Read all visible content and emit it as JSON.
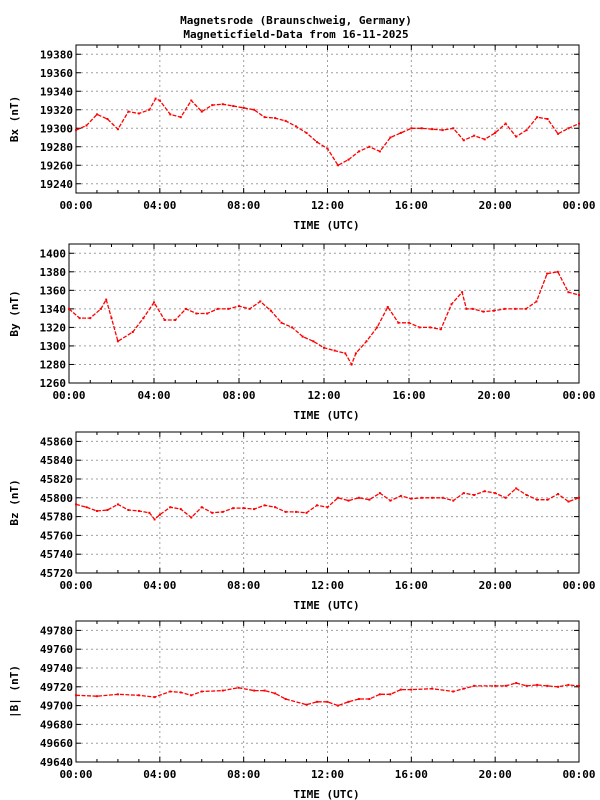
{
  "title_line1": "Magnetsrode (Braunschweig, Germany)",
  "title_line2": "Magneticfield-Data from 16-11-2025",
  "colors": {
    "series": "#ff0000",
    "grid": "#a0a0a0",
    "axis": "#000000"
  },
  "chart_data": [
    {
      "type": "scatter",
      "ylabel": "Bx (nT)",
      "xlabel": "TIME (UTC)",
      "xticks": [
        "00:00",
        "04:00",
        "08:00",
        "12:00",
        "16:00",
        "20:00",
        "00:00"
      ],
      "xlim_hours": [
        0,
        24
      ],
      "yticks": [
        19240,
        19260,
        19280,
        19300,
        19320,
        19340,
        19360,
        19380
      ],
      "ylim": [
        19230,
        19390
      ],
      "grid": true,
      "x": [
        0,
        0.5,
        1,
        1.5,
        2,
        2.5,
        3,
        3.5,
        3.8,
        4,
        4.5,
        5,
        5.5,
        6,
        6.5,
        7,
        7.5,
        8,
        8.5,
        9,
        9.5,
        10,
        10.5,
        11,
        11.5,
        12,
        12.5,
        13,
        13.5,
        14,
        14.5,
        15,
        15.5,
        16,
        16.5,
        17,
        17.5,
        18,
        18.5,
        19,
        19.5,
        20,
        20.5,
        21,
        21.5,
        22,
        22.5,
        23,
        23.5,
        24
      ],
      "y": [
        19298,
        19303,
        19315,
        19310,
        19299,
        19318,
        19316,
        19320,
        19332,
        19330,
        19315,
        19312,
        19330,
        19318,
        19325,
        19326,
        19324,
        19322,
        19320,
        19312,
        19311,
        19308,
        19302,
        19295,
        19285,
        19278,
        19260,
        19266,
        19275,
        19280,
        19275,
        19290,
        19295,
        19300,
        19300,
        19299,
        19298,
        19300,
        19287,
        19292,
        19288,
        19295,
        19305,
        19291,
        19298,
        19312,
        19310,
        19294,
        19300,
        19305
      ]
    },
    {
      "type": "scatter",
      "ylabel": "By (nT)",
      "xlabel": "TIME (UTC)",
      "xticks": [
        "00:00",
        "04:00",
        "08:00",
        "12:00",
        "16:00",
        "20:00",
        "00:00"
      ],
      "xlim_hours": [
        0,
        24
      ],
      "yticks": [
        1260,
        1280,
        1300,
        1320,
        1340,
        1360,
        1380,
        1400
      ],
      "ylim": [
        1260,
        1410
      ],
      "grid": true,
      "x": [
        0,
        0.5,
        1,
        1.5,
        1.75,
        2,
        2.3,
        3,
        3.5,
        4,
        4.5,
        5,
        5.5,
        6,
        6.5,
        7,
        7.5,
        8,
        8.5,
        9,
        9.5,
        10,
        10.5,
        11,
        11.5,
        12,
        12.5,
        13,
        13.3,
        13.5,
        14,
        14.5,
        15,
        15.5,
        16,
        16.5,
        17,
        17.5,
        18,
        18.5,
        18.7,
        19,
        19.5,
        20,
        20.5,
        21,
        21.5,
        22,
        22.5,
        23,
        23.5,
        24
      ],
      "y": [
        1340,
        1330,
        1330,
        1340,
        1350,
        1330,
        1305,
        1315,
        1330,
        1347,
        1328,
        1328,
        1340,
        1335,
        1335,
        1340,
        1340,
        1343,
        1340,
        1348,
        1338,
        1325,
        1320,
        1310,
        1305,
        1298,
        1295,
        1292,
        1280,
        1292,
        1305,
        1320,
        1342,
        1325,
        1325,
        1320,
        1320,
        1318,
        1345,
        1358,
        1340,
        1340,
        1337,
        1338,
        1340,
        1340,
        1340,
        1348,
        1378,
        1380,
        1358,
        1355
      ]
    },
    {
      "type": "scatter",
      "ylabel": "Bz (nT)",
      "xlabel": "TIME (UTC)",
      "xticks": [
        "00:00",
        "04:00",
        "08:00",
        "12:00",
        "16:00",
        "20:00",
        "00:00"
      ],
      "xlim_hours": [
        0,
        24
      ],
      "yticks": [
        45720,
        45740,
        45760,
        45780,
        45800,
        45820,
        45840,
        45860
      ],
      "ylim": [
        45720,
        45870
      ],
      "grid": true,
      "x": [
        0,
        0.5,
        1,
        1.5,
        2,
        2.5,
        3,
        3.5,
        3.75,
        4,
        4.5,
        5,
        5.5,
        6,
        6.5,
        7,
        7.5,
        8,
        8.5,
        9,
        9.5,
        10,
        10.5,
        11,
        11.5,
        12,
        12.5,
        13,
        13.5,
        14,
        14.5,
        15,
        15.5,
        16,
        16.5,
        17,
        17.5,
        18,
        18.5,
        19,
        19.5,
        20,
        20.5,
        21,
        21.5,
        22,
        22.5,
        23,
        23.5,
        24
      ],
      "y": [
        45793,
        45790,
        45786,
        45787,
        45793,
        45787,
        45786,
        45784,
        45777,
        45782,
        45790,
        45788,
        45779,
        45790,
        45784,
        45785,
        45789,
        45789,
        45788,
        45792,
        45790,
        45785,
        45785,
        45784,
        45792,
        45790,
        45800,
        45797,
        45800,
        45798,
        45805,
        45797,
        45802,
        45799,
        45800,
        45800,
        45800,
        45797,
        45805,
        45803,
        45807,
        45805,
        45800,
        45810,
        45803,
        45798,
        45798,
        45804,
        45796,
        45800
      ]
    },
    {
      "type": "scatter",
      "ylabel": "|B| (nT)",
      "xlabel": "TIME (UTC)",
      "xticks": [
        "00:00",
        "04:00",
        "08:00",
        "12:00",
        "16:00",
        "20:00",
        "00:00"
      ],
      "xlim_hours": [
        0,
        24
      ],
      "yticks": [
        49640,
        49660,
        49680,
        49700,
        49720,
        49740,
        49760,
        49780
      ],
      "ylim": [
        49640,
        49790
      ],
      "grid": true,
      "x": [
        0,
        1,
        2,
        3,
        3.75,
        4.5,
        5,
        5.5,
        6,
        7,
        7.75,
        8.5,
        9,
        9.5,
        10,
        11,
        11.5,
        12,
        12.5,
        13,
        13.5,
        14,
        14.5,
        15,
        15.5,
        16,
        17,
        18,
        18.5,
        19,
        20,
        20.5,
        21,
        21.5,
        22,
        22.5,
        23,
        23.5,
        24
      ],
      "y": [
        49711,
        49710,
        49712,
        49711,
        49709,
        49715,
        49714,
        49711,
        49715,
        49716,
        49719,
        49716,
        49716,
        49713,
        49707,
        49701,
        49704,
        49704,
        49700,
        49704,
        49707,
        49707,
        49712,
        49712,
        49717,
        49717,
        49718,
        49715,
        49718,
        49721,
        49721,
        49721,
        49724,
        49721,
        49722,
        49721,
        49720,
        49722,
        49721
      ]
    }
  ]
}
